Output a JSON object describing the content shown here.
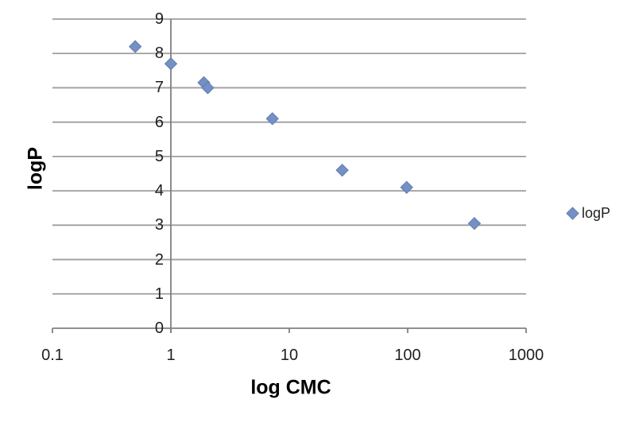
{
  "chart_data": {
    "type": "scatter",
    "title": "",
    "xlabel": "log CMC",
    "ylabel": "logP",
    "x_scale": "log",
    "xlim": [
      0.1,
      1000
    ],
    "ylim": [
      0,
      9
    ],
    "x_ticks": [
      "0.1",
      "1",
      "10",
      "100",
      "1000"
    ],
    "x_tick_values": [
      0.1,
      1,
      10,
      100,
      1000
    ],
    "y_ticks": [
      "0",
      "1",
      "2",
      "3",
      "4",
      "5",
      "6",
      "7",
      "8",
      "9"
    ],
    "y_tick_values": [
      0,
      1,
      2,
      3,
      4,
      5,
      6,
      7,
      8,
      9
    ],
    "grid": "horizontal",
    "axis_crosses_x_at": 1,
    "series": [
      {
        "name": "logP",
        "marker": "diamond",
        "x": [
          0.5,
          1.0,
          1.9,
          2.05,
          7.2,
          28,
          98,
          366
        ],
        "y": [
          8.2,
          7.7,
          7.15,
          7.0,
          6.1,
          4.6,
          4.1,
          3.05
        ]
      }
    ],
    "legend": {
      "position": "right",
      "entries": [
        "logP"
      ]
    }
  },
  "colors": {
    "marker_fill": "#7590c2",
    "marker_stroke": "#5f7db3",
    "gridline": "#9e9e9e",
    "axis_line": "#808080",
    "tick_text": "#1f1f1f",
    "title_text": "#000000",
    "background": "#ffffff"
  }
}
